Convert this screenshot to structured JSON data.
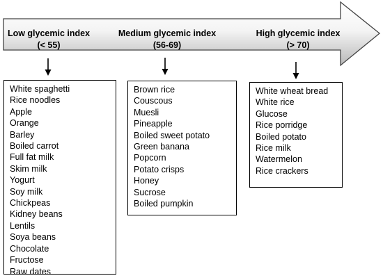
{
  "categories": [
    {
      "title": "Low glycemic index",
      "range": "(< 55)",
      "items": [
        "White spaghetti",
        "Rice noodles",
        "Apple",
        "Orange",
        "Barley",
        "Boiled carrot",
        "Full fat milk",
        "Skim milk",
        "Yogurt",
        "Soy milk",
        "Chickpeas",
        "Kidney beans",
        "Lentils",
        "Soya beans",
        "Chocolate",
        "Fructose",
        "Raw dates"
      ]
    },
    {
      "title": "Medium glycemic index",
      "range": "(56-69)",
      "items": [
        "Brown rice",
        "Couscous",
        "Muesli",
        "Pineapple",
        "Boiled sweet potato",
        "Green banana",
        "Popcorn",
        "Potato crisps",
        "Honey",
        "Sucrose",
        "Boiled pumpkin"
      ]
    },
    {
      "title": "High glycemic index",
      "range": "(> 70)",
      "items": [
        "White wheat bread",
        "White rice",
        "Glucose",
        "Rice porridge",
        "Boiled potato",
        "Rice milk",
        "Watermelon",
        "Rice crackers"
      ]
    }
  ]
}
